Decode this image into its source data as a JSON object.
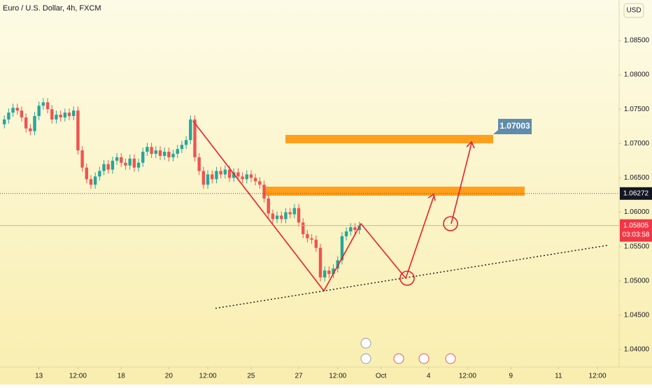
{
  "chart_data": {
    "type": "candlestick",
    "title": "Euro / U.S. Dollar, 4h, FXCM",
    "currency": "USD",
    "up_color": "#26a69a",
    "down_color": "#ef5350",
    "xlim": [
      0,
      143
    ],
    "ylim": [
      1.03796,
      1.0909
    ],
    "yticks": [
      {
        "value": 1.04,
        "label": "1.04000"
      },
      {
        "value": 1.045,
        "label": "1.04500"
      },
      {
        "value": 1.05,
        "label": "1.05000"
      },
      {
        "value": 1.055,
        "label": "1.05500"
      },
      {
        "value": 1.06,
        "label": "1.06000"
      },
      {
        "value": 1.065,
        "label": "1.06500"
      },
      {
        "value": 1.07,
        "label": "1.07000"
      },
      {
        "value": 1.075,
        "label": "1.07500"
      },
      {
        "value": 1.08,
        "label": "1.08000"
      },
      {
        "value": 1.085,
        "label": "1.08500"
      }
    ],
    "xticks": [
      {
        "value": 9,
        "label": "13"
      },
      {
        "value": 18,
        "label": "12:00"
      },
      {
        "value": 28,
        "label": "18"
      },
      {
        "value": 39,
        "label": "20"
      },
      {
        "value": 48,
        "label": "12:00"
      },
      {
        "value": 58,
        "label": "25"
      },
      {
        "value": 69,
        "label": "27"
      },
      {
        "value": 78,
        "label": "12:00"
      },
      {
        "value": 88,
        "label": "Oct"
      },
      {
        "value": 99,
        "label": "4"
      },
      {
        "value": 108,
        "label": "12:00"
      },
      {
        "value": 118,
        "label": "9"
      },
      {
        "value": 129,
        "label": "11"
      },
      {
        "value": 138,
        "label": "12:00"
      }
    ],
    "price_lines": [
      {
        "value": 1.06272,
        "label": "1.06272"
      },
      {
        "value": 1.05805,
        "label": "1.05805",
        "countdown": "03:03:58"
      }
    ],
    "target_label": "1.07003",
    "x": [
      1,
      2,
      3,
      4,
      5,
      6,
      7,
      8,
      9,
      10,
      11,
      12,
      13,
      14,
      15,
      16,
      17,
      18,
      19,
      20,
      21,
      22,
      23,
      24,
      25,
      26,
      27,
      28,
      29,
      30,
      31,
      32,
      33,
      34,
      35,
      36,
      37,
      38,
      39,
      40,
      41,
      42,
      43,
      44,
      45,
      46,
      47,
      48,
      49,
      50,
      51,
      52,
      53,
      54,
      55,
      56,
      57,
      58,
      59,
      60,
      61,
      62,
      63,
      64,
      65,
      66,
      67,
      68,
      69,
      70,
      71,
      72,
      73,
      74,
      75,
      76,
      77,
      78,
      79,
      80,
      81,
      82,
      83
    ],
    "open": [
      1.0728,
      1.0735,
      1.0745,
      1.0752,
      1.0748,
      1.0738,
      1.0722,
      1.0718,
      1.074,
      1.0755,
      1.076,
      1.075,
      1.0735,
      1.0742,
      1.0738,
      1.0745,
      1.074,
      1.0748,
      1.069,
      1.0665,
      1.0648,
      1.064,
      1.0652,
      1.066,
      1.067,
      1.0662,
      1.0675,
      1.068,
      1.0672,
      1.0668,
      1.0678,
      1.0665,
      1.0672,
      1.0688,
      1.0695,
      1.0685,
      1.069,
      1.0682,
      1.0688,
      1.068,
      1.0685,
      1.0692,
      1.0698,
      1.0705,
      1.0735,
      1.068,
      1.066,
      1.064,
      1.0655,
      1.0648,
      1.066,
      1.0655,
      1.0662,
      1.065,
      1.0658,
      1.0652,
      1.0648,
      1.0655,
      1.065,
      1.0645,
      1.064,
      1.062,
      1.0598,
      1.059,
      1.0595,
      1.059,
      1.06,
      1.0597,
      1.0606,
      1.0585,
      1.0568,
      1.0562,
      1.056,
      1.0548,
      1.0505,
      1.0515,
      1.051,
      1.0518,
      1.053,
      1.0565,
      1.0572,
      1.0578,
      1.0574
    ],
    "high": [
      1.0741,
      1.0751,
      1.0758,
      1.0758,
      1.0754,
      1.0744,
      1.0728,
      1.0746,
      1.0761,
      1.0766,
      1.0766,
      1.0756,
      1.0748,
      1.0748,
      1.0751,
      1.0751,
      1.0754,
      1.0754,
      1.0696,
      1.0671,
      1.0654,
      1.0658,
      1.0666,
      1.0676,
      1.0676,
      1.0681,
      1.0686,
      1.0686,
      1.0678,
      1.0684,
      1.0684,
      1.0678,
      1.0694,
      1.0701,
      1.0701,
      1.0696,
      1.0696,
      1.0694,
      1.0694,
      1.0691,
      1.0698,
      1.0704,
      1.0711,
      1.0741,
      1.0741,
      1.0686,
      1.0666,
      1.0661,
      1.0661,
      1.0666,
      1.0666,
      1.0668,
      1.0668,
      1.0664,
      1.0664,
      1.0658,
      1.0661,
      1.0661,
      1.0656,
      1.0651,
      1.0646,
      1.0626,
      1.0604,
      1.0601,
      1.0601,
      1.0606,
      1.0606,
      1.0612,
      1.0612,
      1.0591,
      1.0574,
      1.0568,
      1.0566,
      1.0554,
      1.0521,
      1.0521,
      1.0524,
      1.0536,
      1.0571,
      1.0578,
      1.0584,
      1.0584,
      1.0586
    ],
    "low": [
      1.0722,
      1.0729,
      1.0739,
      1.0742,
      1.0732,
      1.0716,
      1.0712,
      1.0712,
      1.0734,
      1.0749,
      1.0744,
      1.0729,
      1.0729,
      1.0732,
      1.0732,
      1.0734,
      1.0734,
      1.0684,
      1.0659,
      1.0642,
      1.0634,
      1.0634,
      1.0646,
      1.0654,
      1.0656,
      1.0656,
      1.0669,
      1.0666,
      1.0662,
      1.0662,
      1.0659,
      1.0659,
      1.0666,
      1.0682,
      1.0679,
      1.0679,
      1.0676,
      1.0676,
      1.0674,
      1.0674,
      1.0679,
      1.0686,
      1.0692,
      1.0699,
      1.0674,
      1.0654,
      1.0634,
      1.0634,
      1.0642,
      1.0642,
      1.0649,
      1.0649,
      1.0644,
      1.0644,
      1.0646,
      1.0642,
      1.0642,
      1.0644,
      1.0639,
      1.0634,
      1.0614,
      1.0592,
      1.0584,
      1.0584,
      1.0584,
      1.0584,
      1.0591,
      1.0591,
      1.0579,
      1.0562,
      1.0556,
      1.0554,
      1.0542,
      1.0499,
      1.0499,
      1.0504,
      1.0504,
      1.0512,
      1.0524,
      1.0559,
      1.0566,
      1.0568,
      1.0568
    ],
    "close": [
      1.0735,
      1.0745,
      1.0752,
      1.0748,
      1.0738,
      1.0722,
      1.0718,
      1.074,
      1.0755,
      1.076,
      1.075,
      1.0735,
      1.0742,
      1.0738,
      1.0745,
      1.074,
      1.0748,
      1.069,
      1.0665,
      1.0648,
      1.064,
      1.0652,
      1.066,
      1.067,
      1.0662,
      1.0675,
      1.068,
      1.0672,
      1.0668,
      1.0678,
      1.0665,
      1.0672,
      1.0688,
      1.0695,
      1.0685,
      1.069,
      1.0682,
      1.0688,
      1.068,
      1.0685,
      1.0692,
      1.0698,
      1.0705,
      1.0735,
      1.068,
      1.066,
      1.064,
      1.0655,
      1.0648,
      1.066,
      1.0655,
      1.0662,
      1.065,
      1.0658,
      1.0652,
      1.0648,
      1.0655,
      1.065,
      1.0645,
      1.064,
      1.062,
      1.0598,
      1.059,
      1.0595,
      1.059,
      1.06,
      1.0597,
      1.0606,
      1.0585,
      1.0568,
      1.0562,
      1.056,
      1.0548,
      1.0505,
      1.0515,
      1.051,
      1.0518,
      1.053,
      1.0565,
      1.0572,
      1.0578,
      1.0574,
      1.058
    ]
  }
}
